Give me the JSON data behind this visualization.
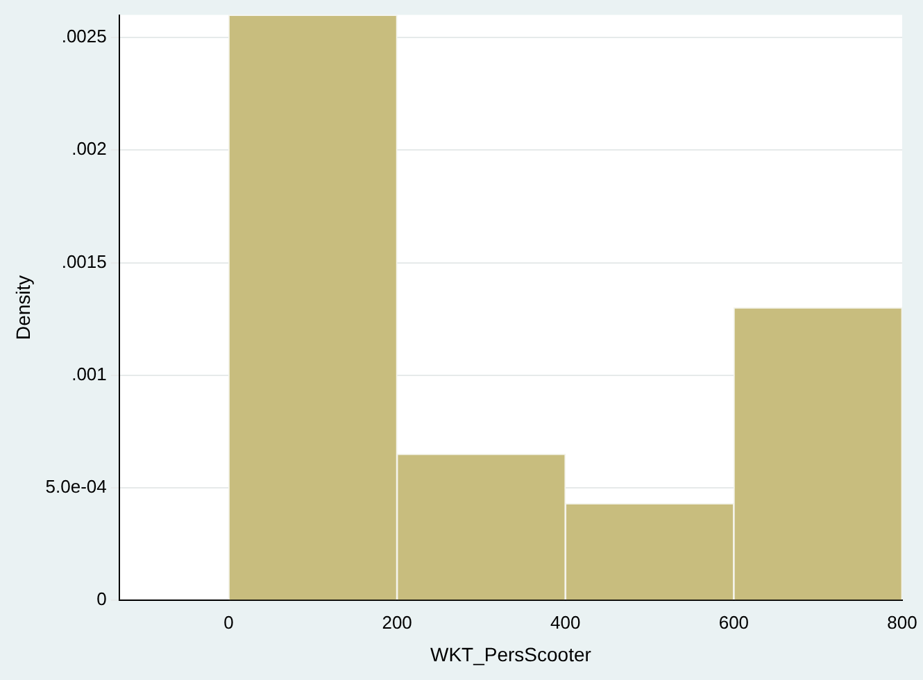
{
  "chart_data": {
    "type": "histogram",
    "xlabel": "WKT_PersScooter",
    "ylabel": "Density",
    "bins": [
      0,
      200,
      400,
      600,
      800
    ],
    "values": [
      0.0026,
      0.00065,
      0.00043,
      0.0013
    ],
    "color": "#c8bd7e",
    "xlim": [
      -130,
      800
    ],
    "xticks": [
      0,
      200,
      400,
      600,
      800
    ],
    "ylim": [
      0,
      0.0026
    ],
    "yticks": [
      0,
      {
        "value": 0.0005,
        "label": "5.0e-04"
      },
      {
        "value": 0.001,
        "label": ".001"
      },
      {
        "value": 0.0015,
        "label": ".0015"
      },
      {
        "value": 0.002,
        "label": ".002"
      },
      {
        "value": 0.0025,
        "label": ".0025"
      }
    ],
    "grid": "y",
    "legend": false
  }
}
